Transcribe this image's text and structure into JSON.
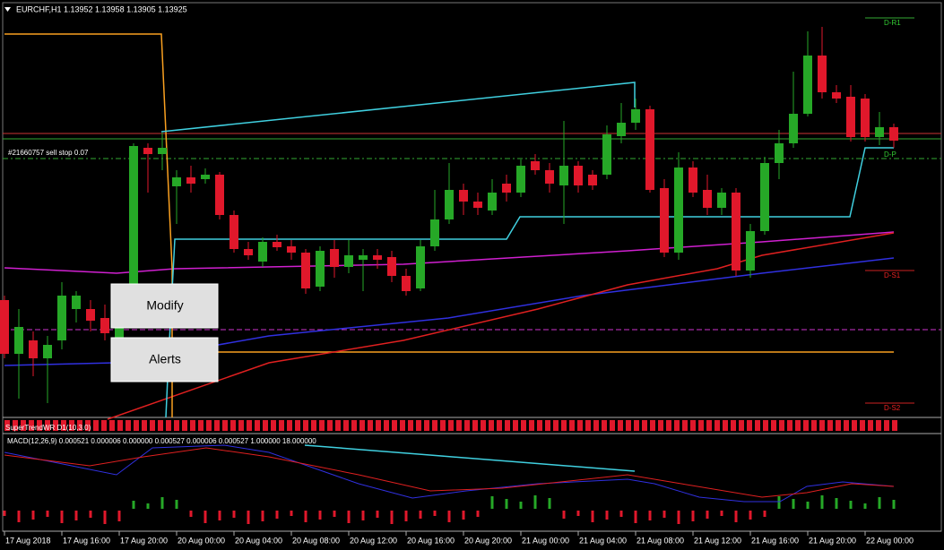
{
  "header": {
    "symbol_info": "EURCHF,H1  1.13952 1.13958 1.13905 1.13925"
  },
  "levels": {
    "r1": "D-R1",
    "p": "D-P",
    "s1": "D-S1",
    "s2": "D-S2"
  },
  "order_label": "#21660757 sell stop 0.07",
  "buttons": {
    "modify": "Modify",
    "alerts": "Alerts"
  },
  "indicators": {
    "supertrend": "SuperTrendWR D1(10,3.0)",
    "macd": "MACD(12,26,9) 0.000521 0.000006 0.000000 0.000527 0.000006 0.000527 1.000000 18.000000"
  },
  "time_axis": [
    "17 Aug 2018",
    "17 Aug 16:00",
    "17 Aug 20:00",
    "20 Aug 00:00",
    "20 Aug 04:00",
    "20 Aug 08:00",
    "20 Aug 12:00",
    "20 Aug 16:00",
    "20 Aug 20:00",
    "21 Aug 00:00",
    "21 Aug 04:00",
    "21 Aug 08:00",
    "21 Aug 12:00",
    "21 Aug 16:00",
    "21 Aug 20:00",
    "22 Aug 00:00"
  ]
}
